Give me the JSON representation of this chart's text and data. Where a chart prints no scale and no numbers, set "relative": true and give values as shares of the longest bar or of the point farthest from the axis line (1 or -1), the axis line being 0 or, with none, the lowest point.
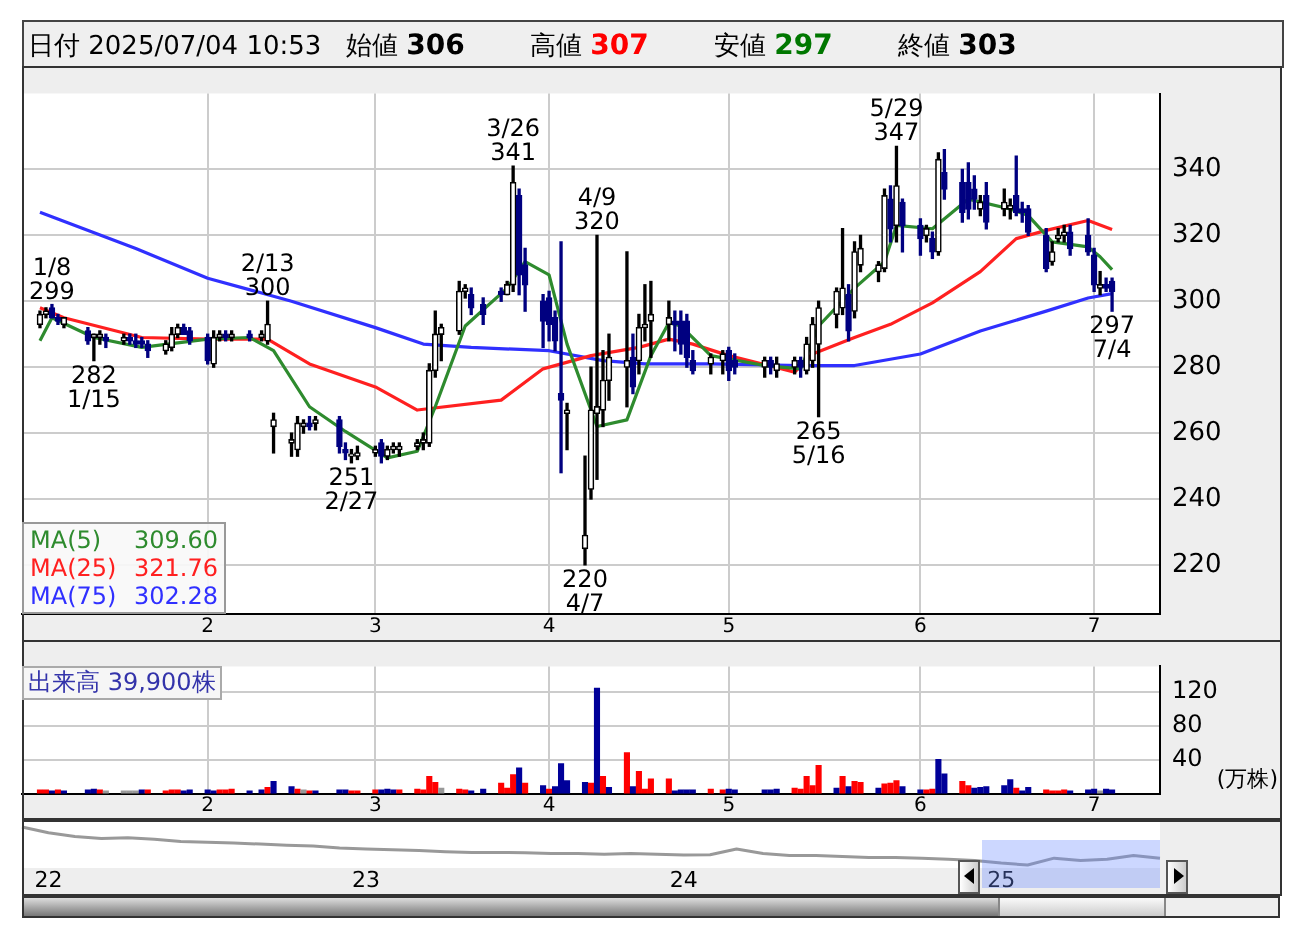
{
  "chart_data": [
    {
      "type": "candlestick",
      "title": "日付 2025/07/04 10:53",
      "x": [
        "2025-01-06",
        "2025-01-07",
        "2025-01-08",
        "2025-01-09",
        "2025-01-10",
        "2025-01-14",
        "2025-01-15",
        "2025-01-16",
        "2025-01-17",
        "2025-01-20",
        "2025-01-21",
        "2025-01-22",
        "2025-01-23",
        "2025-01-24",
        "2025-01-27",
        "2025-01-28",
        "2025-01-29",
        "2025-01-30",
        "2025-01-31",
        "2025-02-03",
        "2025-02-04",
        "2025-02-05",
        "2025-02-06",
        "2025-02-07",
        "2025-02-10",
        "2025-02-12",
        "2025-02-13",
        "2025-02-14",
        "2025-02-17",
        "2025-02-18",
        "2025-02-19",
        "2025-02-20",
        "2025-02-21",
        "2025-02-25",
        "2025-02-26",
        "2025-02-27",
        "2025-02-28",
        "2025-03-03",
        "2025-03-04",
        "2025-03-05",
        "2025-03-06",
        "2025-03-07",
        "2025-03-10",
        "2025-03-11",
        "2025-03-12",
        "2025-03-13",
        "2025-03-14",
        "2025-03-17",
        "2025-03-18",
        "2025-03-19",
        "2025-03-21",
        "2025-03-24",
        "2025-03-25",
        "2025-03-26",
        "2025-03-27",
        "2025-03-28",
        "2025-03-31",
        "2025-04-01",
        "2025-04-02",
        "2025-04-03",
        "2025-04-04",
        "2025-04-07",
        "2025-04-08",
        "2025-04-09",
        "2025-04-10",
        "2025-04-11",
        "2025-04-14",
        "2025-04-15",
        "2025-04-16",
        "2025-04-17",
        "2025-04-18",
        "2025-04-21",
        "2025-04-22",
        "2025-04-23",
        "2025-04-24",
        "2025-04-25",
        "2025-04-28",
        "2025-04-30",
        "2025-05-01",
        "2025-05-02",
        "2025-05-07",
        "2025-05-08",
        "2025-05-09",
        "2025-05-12",
        "2025-05-13",
        "2025-05-14",
        "2025-05-15",
        "2025-05-16",
        "2025-05-19",
        "2025-05-20",
        "2025-05-21",
        "2025-05-22",
        "2025-05-23",
        "2025-05-26",
        "2025-05-27",
        "2025-05-28",
        "2025-05-29",
        "2025-05-30",
        "2025-06-02",
        "2025-06-03",
        "2025-06-04",
        "2025-06-05",
        "2025-06-06",
        "2025-06-09",
        "2025-06-10",
        "2025-06-11",
        "2025-06-12",
        "2025-06-13",
        "2025-06-16",
        "2025-06-17",
        "2025-06-18",
        "2025-06-19",
        "2025-06-20",
        "2025-06-23",
        "2025-06-24",
        "2025-06-25",
        "2025-06-26",
        "2025-06-27",
        "2025-06-30",
        "2025-07-01",
        "2025-07-02",
        "2025-07-03",
        "2025-07-04"
      ],
      "ohlc": [
        [
          293,
          297,
          292,
          296
        ],
        [
          296,
          298,
          295,
          297
        ],
        [
          298,
          299,
          295,
          295
        ],
        [
          295,
          296,
          293,
          294
        ],
        [
          293,
          295,
          292,
          295
        ],
        [
          291,
          292,
          287,
          288
        ],
        [
          289,
          290,
          282,
          290
        ],
        [
          289,
          291,
          287,
          290
        ],
        [
          289,
          290,
          286,
          288
        ],
        [
          288,
          290,
          287,
          289
        ],
        [
          289,
          290,
          287,
          288
        ],
        [
          288,
          290,
          286,
          287
        ],
        [
          288,
          289,
          286,
          287
        ],
        [
          287,
          288,
          283,
          285
        ],
        [
          285,
          288,
          284,
          287
        ],
        [
          286,
          292,
          285,
          290
        ],
        [
          290,
          293,
          289,
          292
        ],
        [
          292,
          293,
          290,
          290
        ],
        [
          291,
          292,
          287,
          288
        ],
        [
          289,
          290,
          281,
          282
        ],
        [
          281,
          291,
          280,
          289
        ],
        [
          289,
          291,
          288,
          290
        ],
        [
          290,
          291,
          288,
          289
        ],
        [
          289,
          291,
          288,
          290
        ],
        [
          290,
          291,
          288,
          289
        ],
        [
          289,
          291,
          288,
          290
        ],
        [
          288,
          300,
          287,
          293
        ],
        [
          262,
          266,
          254,
          264
        ],
        [
          257,
          260,
          253,
          258
        ],
        [
          255,
          265,
          253,
          263
        ],
        [
          262,
          264,
          260,
          263
        ],
        [
          263,
          265,
          261,
          262
        ],
        [
          263,
          265,
          261,
          264
        ],
        [
          264,
          265,
          254,
          256
        ],
        [
          255,
          257,
          252,
          254
        ],
        [
          253,
          255,
          251,
          253
        ],
        [
          253,
          256,
          252,
          254
        ],
        [
          254,
          256,
          253,
          255
        ],
        [
          257,
          258,
          251,
          253
        ],
        [
          253,
          256,
          252,
          255
        ],
        [
          255,
          257,
          254,
          256
        ],
        [
          255,
          257,
          253,
          256
        ],
        [
          256,
          258,
          255,
          257
        ],
        [
          257,
          260,
          255,
          258
        ],
        [
          257,
          281,
          256,
          279
        ],
        [
          279,
          297,
          277,
          290
        ],
        [
          290,
          293,
          282,
          292
        ],
        [
          291,
          306,
          290,
          303
        ],
        [
          303,
          305,
          301,
          304
        ],
        [
          302,
          304,
          296,
          298
        ],
        [
          299,
          301,
          293,
          296
        ],
        [
          303,
          304,
          300,
          302
        ],
        [
          302,
          306,
          302,
          305
        ],
        [
          305,
          341,
          303,
          336
        ],
        [
          332,
          334,
          302,
          308
        ],
        [
          311,
          316,
          297,
          305
        ],
        [
          300,
          302,
          286,
          294
        ],
        [
          301,
          303,
          288,
          293
        ],
        [
          295,
          297,
          285,
          288
        ],
        [
          272,
          318,
          248,
          270
        ],
        [
          266,
          269,
          255,
          267
        ],
        [
          225,
          253,
          220,
          229
        ],
        [
          243,
          280,
          240,
          267
        ],
        [
          266,
          320,
          246,
          268
        ],
        [
          267,
          285,
          262,
          276
        ],
        [
          276,
          290,
          270,
          283
        ],
        [
          280,
          315,
          268,
          282
        ],
        [
          283,
          290,
          272,
          274
        ],
        [
          282,
          296,
          278,
          292
        ],
        [
          292,
          305,
          288,
          293
        ],
        [
          294,
          306,
          283,
          296
        ],
        [
          293,
          300,
          288,
          295
        ],
        [
          294,
          297,
          285,
          293
        ],
        [
          294,
          297,
          284,
          287
        ],
        [
          294,
          296,
          280,
          283
        ],
        [
          282,
          285,
          278,
          279
        ],
        [
          281,
          284,
          278,
          283
        ],
        [
          282,
          285,
          278,
          284
        ],
        [
          285,
          286,
          276,
          279
        ],
        [
          282,
          284,
          278,
          280
        ],
        [
          280,
          283,
          277,
          282
        ],
        [
          282,
          283,
          278,
          280
        ],
        [
          279,
          283,
          277,
          281
        ],
        [
          280,
          283,
          278,
          282
        ],
        [
          282,
          283,
          277,
          280
        ],
        [
          279,
          289,
          278,
          287
        ],
        [
          282,
          295,
          280,
          293
        ],
        [
          287,
          300,
          265,
          298
        ],
        [
          296,
          304,
          292,
          303
        ],
        [
          298,
          322,
          296,
          304
        ],
        [
          302,
          305,
          288,
          291
        ],
        [
          297,
          318,
          295,
          315
        ],
        [
          311,
          320,
          309,
          316
        ],
        [
          309,
          312,
          306,
          311
        ],
        [
          310,
          334,
          309,
          332
        ],
        [
          331,
          335,
          318,
          322
        ],
        [
          323,
          347,
          318,
          335
        ],
        [
          330,
          331,
          315,
          323
        ],
        [
          323,
          325,
          314,
          319
        ],
        [
          320,
          323,
          318,
          322
        ],
        [
          319,
          321,
          313,
          315
        ],
        [
          315,
          345,
          314,
          343
        ],
        [
          339,
          346,
          331,
          334
        ],
        [
          336,
          340,
          324,
          327
        ],
        [
          336,
          342,
          325,
          328
        ],
        [
          334,
          338,
          328,
          331
        ],
        [
          328,
          332,
          326,
          330
        ],
        [
          332,
          336,
          322,
          324
        ],
        [
          328,
          334,
          326,
          330
        ],
        [
          328,
          331,
          325,
          329
        ],
        [
          332,
          344,
          326,
          327
        ],
        [
          328,
          330,
          324,
          327
        ],
        [
          328,
          329,
          320,
          321
        ],
        [
          320,
          322,
          309,
          310
        ],
        [
          312,
          318,
          311,
          315
        ],
        [
          319,
          322,
          318,
          320
        ],
        [
          320,
          323,
          318,
          321
        ],
        [
          321,
          323,
          314,
          316
        ],
        [
          320,
          325,
          314,
          315
        ],
        [
          314,
          316,
          303,
          305
        ],
        [
          304,
          309,
          302,
          305
        ],
        [
          305,
          307,
          303,
          304
        ],
        [
          306,
          307,
          297,
          303
        ]
      ],
      "series": [
        {
          "name": "MA(5) 309.60",
          "type": "line",
          "color": "#2e8b2e",
          "x": [
            "2025-01-06",
            "2025-01-08",
            "2025-01-15",
            "2025-01-23",
            "2025-02-03",
            "2025-02-10",
            "2025-02-14",
            "2025-02-20",
            "2025-02-26",
            "2025-03-05",
            "2025-03-10",
            "2025-03-13",
            "2025-03-18",
            "2025-03-25",
            "2025-03-28",
            "2025-04-01",
            "2025-04-04",
            "2025-04-09",
            "2025-04-14",
            "2025-04-18",
            "2025-04-21",
            "2025-04-23",
            "2025-04-28",
            "2025-05-07",
            "2025-05-13",
            "2025-05-16",
            "2025-05-22",
            "2025-05-27",
            "2025-05-29",
            "2025-06-04",
            "2025-06-10",
            "2025-06-17",
            "2025-06-20",
            "2025-06-24",
            "2025-06-30",
            "2025-07-02",
            "2025-07-04"
          ],
          "values": [
            288,
            295,
            289,
            286,
            288.5,
            289,
            285,
            268,
            260.5,
            252.5,
            254.5,
            268,
            292.5,
            304,
            312,
            308,
            287,
            262,
            264,
            283.5,
            293.5,
            292.5,
            283.5,
            280.5,
            279.5,
            292.5,
            304,
            312,
            323,
            322,
            331,
            328,
            326,
            318,
            316.5,
            313.5,
            309.6
          ]
        },
        {
          "name": "MA(25) 321.76",
          "type": "line",
          "color": "#ff2020",
          "x": [
            "2025-01-06",
            "2025-01-10",
            "2025-01-23",
            "2025-02-03",
            "2025-02-13",
            "2025-02-20",
            "2025-03-03",
            "2025-03-10",
            "2025-03-24",
            "2025-03-31",
            "2025-04-08",
            "2025-04-16",
            "2025-04-21",
            "2025-04-25",
            "2025-05-01",
            "2025-05-12",
            "2025-05-15",
            "2025-05-22",
            "2025-05-28",
            "2025-06-04",
            "2025-06-12",
            "2025-06-18",
            "2025-06-23",
            "2025-06-30",
            "2025-07-04"
          ],
          "values": [
            298,
            295,
            289,
            288.5,
            288.5,
            281,
            274,
            267,
            270,
            279.5,
            283.5,
            286,
            288.5,
            287,
            283.5,
            278.5,
            284,
            289,
            293,
            299.5,
            309,
            319,
            321.5,
            324.5,
            321.8
          ]
        },
        {
          "name": "MA(75) 302.28",
          "type": "line",
          "color": "#3030ff",
          "x": [
            "2025-01-06",
            "2025-01-22",
            "2025-02-03",
            "2025-02-17",
            "2025-03-03",
            "2025-03-11",
            "2025-03-19",
            "2025-04-01",
            "2025-04-10",
            "2025-04-17",
            "2025-04-28",
            "2025-05-13",
            "2025-05-22",
            "2025-06-02",
            "2025-06-12",
            "2025-06-23",
            "2025-06-30",
            "2025-07-04"
          ],
          "values": [
            327,
            316,
            307,
            300,
            292,
            287,
            286,
            285,
            282,
            281,
            281,
            280.5,
            280.5,
            284,
            291,
            297,
            301,
            302.3
          ]
        }
      ],
      "xlim": [
        "2025-01-03",
        "2025-07-12"
      ],
      "xticks": [
        {
          "value": "2025-02-03",
          "label": "2"
        },
        {
          "value": "2025-03-03",
          "label": "3"
        },
        {
          "value": "2025-04-01",
          "label": "4"
        },
        {
          "value": "2025-05-01",
          "label": "5"
        },
        {
          "value": "2025-06-02",
          "label": "6"
        },
        {
          "value": "2025-07-01",
          "label": "7"
        }
      ],
      "ylim": [
        205,
        363
      ],
      "yticks": [
        220,
        240,
        260,
        280,
        300,
        320,
        340
      ],
      "grid": true,
      "legend": "bottom left",
      "annotations": [
        "始値 306",
        "高値 307",
        "安値 297",
        "終値 303",
        {
          "text": "1/8\n299",
          "x": "2025-01-08",
          "y": 299
        },
        {
          "text": "282\n1/15",
          "x": "2025-01-15",
          "y": 282
        },
        {
          "text": "2/13\n300",
          "x": "2025-02-13",
          "y": 300
        },
        {
          "text": "251\n2/27",
          "x": "2025-02-27",
          "y": 251
        },
        {
          "text": "3/26\n341",
          "x": "2025-03-26",
          "y": 341
        },
        {
          "text": "4/9\n320",
          "x": "2025-04-09",
          "y": 320
        },
        {
          "text": "220\n4/7",
          "x": "2025-04-07",
          "y": 220
        },
        {
          "text": "265\n5/16",
          "x": "2025-05-16",
          "y": 265
        },
        {
          "text": "5/29\n347",
          "x": "2025-05-29",
          "y": 347
        },
        {
          "text": "297\n7/4",
          "x": "2025-07-04",
          "y": 297
        }
      ]
    },
    {
      "type": "bar",
      "title": "出来高 39,900株",
      "ylabel": "(万株)",
      "x": [
        "2025-01-06",
        "2025-01-07",
        "2025-01-08",
        "2025-01-09",
        "2025-01-10",
        "2025-01-14",
        "2025-01-15",
        "2025-01-16",
        "2025-01-17",
        "2025-01-20",
        "2025-01-21",
        "2025-01-22",
        "2025-01-23",
        "2025-01-24",
        "2025-01-27",
        "2025-01-28",
        "2025-01-29",
        "2025-01-30",
        "2025-01-31",
        "2025-02-03",
        "2025-02-04",
        "2025-02-05",
        "2025-02-06",
        "2025-02-07",
        "2025-02-10",
        "2025-02-12",
        "2025-02-13",
        "2025-02-14",
        "2025-02-17",
        "2025-02-18",
        "2025-02-19",
        "2025-02-20",
        "2025-02-21",
        "2025-02-25",
        "2025-02-26",
        "2025-02-27",
        "2025-02-28",
        "2025-03-03",
        "2025-03-04",
        "2025-03-05",
        "2025-03-06",
        "2025-03-07",
        "2025-03-10",
        "2025-03-11",
        "2025-03-12",
        "2025-03-13",
        "2025-03-14",
        "2025-03-17",
        "2025-03-18",
        "2025-03-19",
        "2025-03-21",
        "2025-03-24",
        "2025-03-25",
        "2025-03-26",
        "2025-03-27",
        "2025-03-28",
        "2025-03-31",
        "2025-04-01",
        "2025-04-02",
        "2025-04-03",
        "2025-04-04",
        "2025-04-07",
        "2025-04-08",
        "2025-04-09",
        "2025-04-10",
        "2025-04-11",
        "2025-04-14",
        "2025-04-15",
        "2025-04-16",
        "2025-04-17",
        "2025-04-18",
        "2025-04-21",
        "2025-04-22",
        "2025-04-23",
        "2025-04-24",
        "2025-04-25",
        "2025-04-28",
        "2025-04-30",
        "2025-05-01",
        "2025-05-02",
        "2025-05-07",
        "2025-05-08",
        "2025-05-09",
        "2025-05-12",
        "2025-05-13",
        "2025-05-14",
        "2025-05-15",
        "2025-05-16",
        "2025-05-19",
        "2025-05-20",
        "2025-05-21",
        "2025-05-22",
        "2025-05-23",
        "2025-05-26",
        "2025-05-27",
        "2025-05-28",
        "2025-05-29",
        "2025-05-30",
        "2025-06-02",
        "2025-06-03",
        "2025-06-04",
        "2025-06-05",
        "2025-06-06",
        "2025-06-09",
        "2025-06-10",
        "2025-06-11",
        "2025-06-12",
        "2025-06-13",
        "2025-06-16",
        "2025-06-17",
        "2025-06-18",
        "2025-06-19",
        "2025-06-20",
        "2025-06-23",
        "2025-06-24",
        "2025-06-25",
        "2025-06-26",
        "2025-06-27",
        "2025-06-30",
        "2025-07-01",
        "2025-07-02",
        "2025-07-03",
        "2025-07-04"
      ],
      "values": [
        4,
        4,
        3,
        4,
        3,
        4,
        5,
        4,
        3,
        3,
        3,
        3,
        4,
        4,
        3,
        4,
        4,
        3,
        4,
        4,
        3,
        4,
        4,
        5,
        3,
        4,
        7,
        14,
        8,
        5,
        4,
        3,
        3,
        4,
        4,
        3,
        3,
        4,
        4,
        5,
        4,
        4,
        5,
        4,
        20,
        13,
        6,
        5,
        4,
        3,
        5,
        12,
        6,
        22,
        30,
        12,
        9,
        5,
        8,
        35,
        15,
        13,
        12,
        124,
        20,
        7,
        48,
        8,
        26,
        5,
        17,
        17,
        3,
        4,
        4,
        4,
        5,
        4,
        5,
        4,
        4,
        4,
        5,
        6,
        5,
        20,
        9,
        33,
        6,
        20,
        8,
        14,
        13,
        6,
        11,
        12,
        15,
        8,
        4,
        4,
        5,
        40,
        23,
        14,
        9,
        6,
        7,
        8,
        9,
        16,
        6,
        3,
        7,
        4,
        3,
        3,
        4,
        3,
        4,
        5,
        3,
        5,
        4
      ],
      "colors": [
        "#ff0000",
        "#ff0000",
        "#000099",
        "#ff0000",
        "#000099",
        "#000099",
        "#000099",
        "#ff0000",
        "#999999",
        "#999999",
        "#999999",
        "#999999",
        "#000099",
        "#ff0000",
        "#ff0000",
        "#ff0000",
        "#ff0000",
        "#000099",
        "#000099",
        "#000099",
        "#000099",
        "#ff0000",
        "#ff0000",
        "#ff0000",
        "#000099",
        "#000099",
        "#ff0000",
        "#000099",
        "#000099",
        "#ff0000",
        "#999999",
        "#ff0000",
        "#000099",
        "#000099",
        "#000099",
        "#ff0000",
        "#ff0000",
        "#ff0000",
        "#000099",
        "#000099",
        "#000099",
        "#ff0000",
        "#ff0000",
        "#ff0000",
        "#ff0000",
        "#ff0000",
        "#999999",
        "#ff0000",
        "#ff0000",
        "#000099",
        "#000099",
        "#ff0000",
        "#ff0000",
        "#ff0000",
        "#000099",
        "#ff0000",
        "#000099",
        "#ff0000",
        "#000099",
        "#000099",
        "#000099",
        "#000099",
        "#ff0000",
        "#000099",
        "#ff0000",
        "#000099",
        "#ff0000",
        "#000099",
        "#ff0000",
        "#ff0000",
        "#ff0000",
        "#ff0000",
        "#000099",
        "#000099",
        "#000099",
        "#000099",
        "#ff0000",
        "#ff0000",
        "#000099",
        "#000099",
        "#000099",
        "#000099",
        "#000099",
        "#ff0000",
        "#ff0000",
        "#ff0000",
        "#ff0000",
        "#ff0000",
        "#000099",
        "#ff0000",
        "#000099",
        "#ff0000",
        "#ff0000",
        "#000099",
        "#ff0000",
        "#ff0000",
        "#ff0000",
        "#000099",
        "#000099",
        "#ff0000",
        "#ff0000",
        "#000099",
        "#000099",
        "#ff0000",
        "#ff0000",
        "#000099",
        "#000099",
        "#000099",
        "#000099",
        "#000099",
        "#ff0000",
        "#000099",
        "#000099",
        "#ff0000",
        "#ff0000",
        "#ff0000",
        "#ff0000",
        "#000099",
        "#000099",
        "#000099",
        "#999999",
        "#000099",
        "#000099"
      ],
      "xlim": [
        "2025-01-03",
        "2025-07-12"
      ],
      "xticks": [
        {
          "value": "2025-02-03",
          "label": "2"
        },
        {
          "value": "2025-03-03",
          "label": "3"
        },
        {
          "value": "2025-04-01",
          "label": "4"
        },
        {
          "value": "2025-05-01",
          "label": "5"
        },
        {
          "value": "2025-06-02",
          "label": "6"
        },
        {
          "value": "2025-07-01",
          "label": "7"
        }
      ],
      "ylim": [
        0,
        150
      ],
      "yticks": [
        40,
        80,
        120
      ],
      "grid": true
    },
    {
      "type": "line",
      "relative": true,
      "color": "#999999",
      "categories": [
        null,
        "22",
        null,
        null,
        null,
        null,
        null,
        null,
        null,
        null,
        null,
        null,
        null,
        "23",
        null,
        null,
        null,
        null,
        null,
        null,
        null,
        null,
        null,
        null,
        null,
        "24",
        null,
        null,
        null,
        null,
        null,
        null,
        null,
        null,
        null,
        null,
        null,
        "25",
        null,
        null,
        null,
        null,
        null,
        null
      ],
      "values": [
        1.0,
        0.85,
        0.75,
        0.7,
        0.72,
        0.68,
        0.62,
        0.6,
        0.58,
        0.55,
        0.52,
        0.5,
        0.45,
        0.42,
        0.4,
        0.38,
        0.35,
        0.33,
        0.33,
        0.32,
        0.3,
        0.3,
        0.28,
        0.3,
        0.28,
        0.26,
        0.27,
        0.42,
        0.3,
        0.25,
        0.25,
        0.22,
        0.2,
        0.2,
        0.18,
        0.15,
        0.12,
        0.05,
        0,
        0.18,
        0.12,
        0.15,
        0.25,
        0.18
      ]
    }
  ]
}
